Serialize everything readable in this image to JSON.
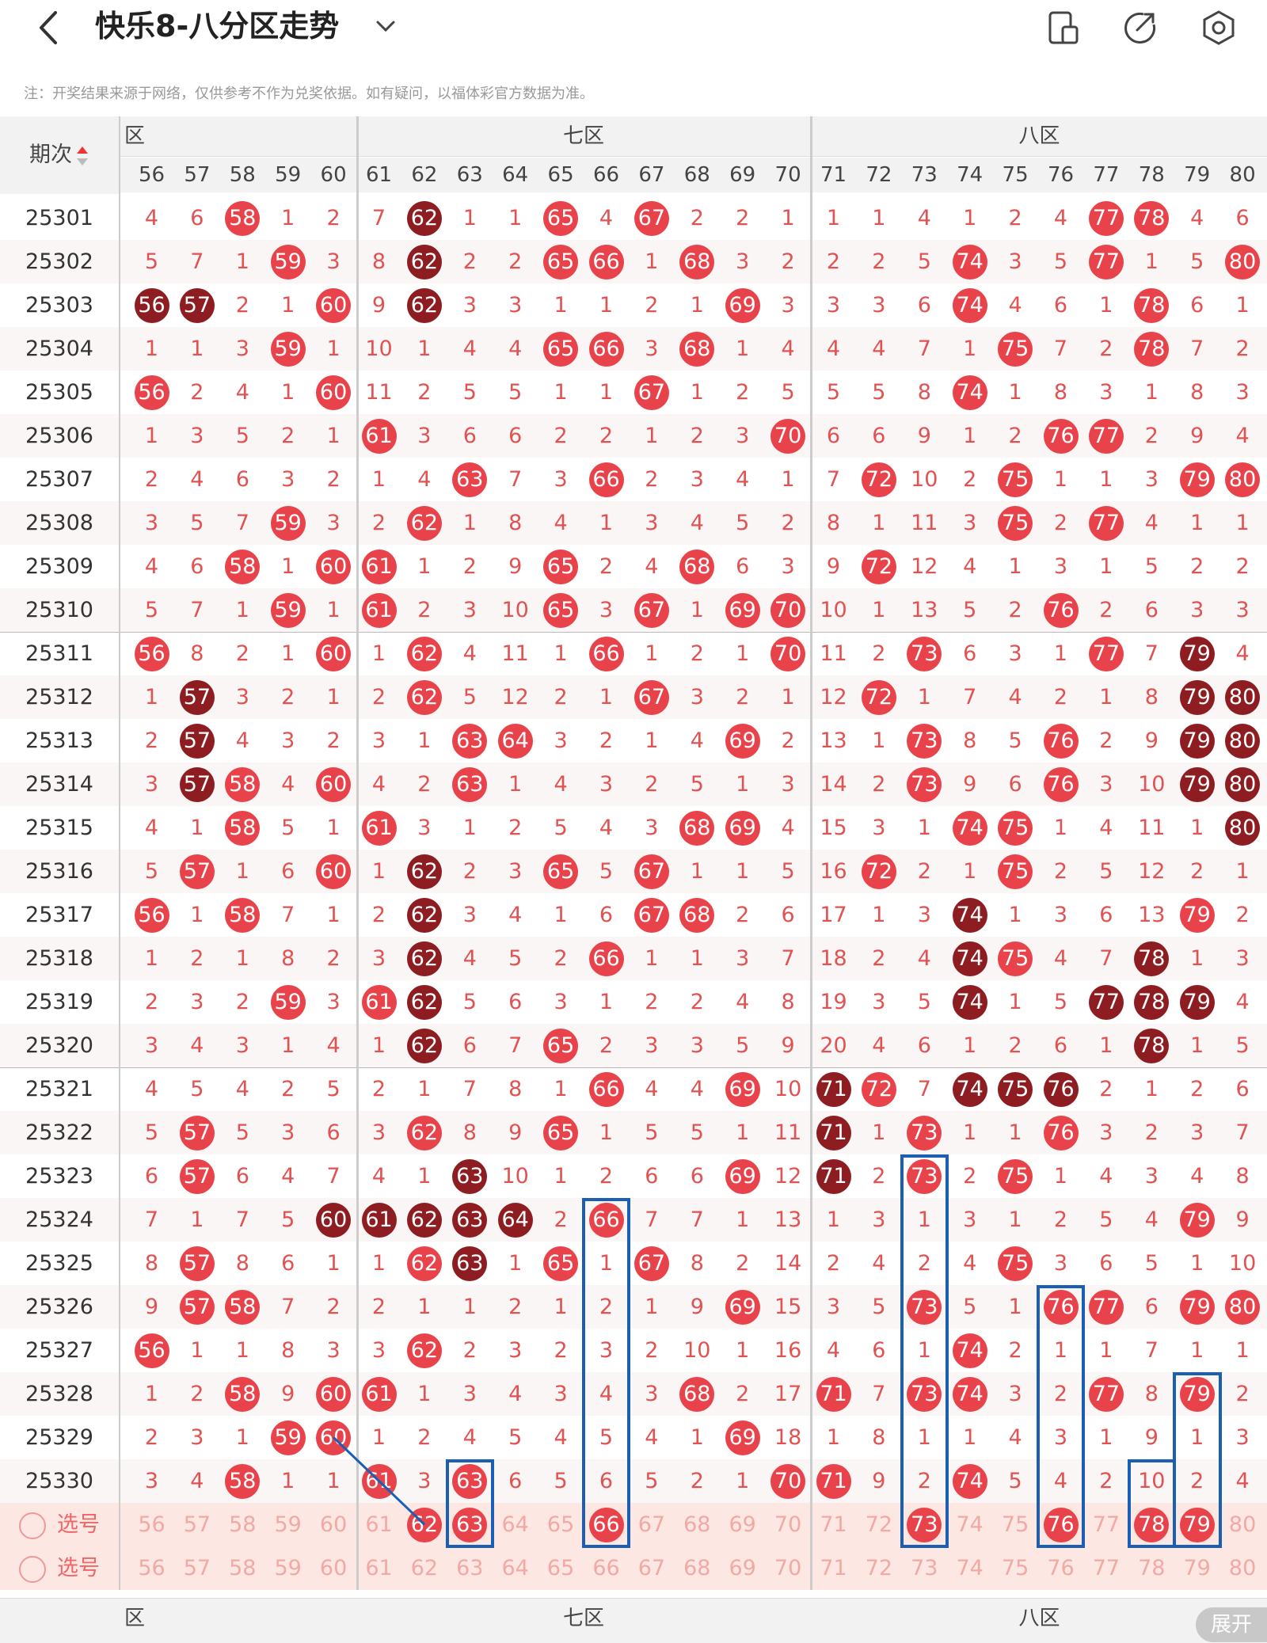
{
  "header": {
    "title": "快乐8-八分区走势",
    "back_icon": "back-arrow-icon",
    "dropdown_icon": "chevron-down-icon",
    "icons": [
      "split-screen-icon",
      "share-icon",
      "settings-icon"
    ]
  },
  "notice": "注：开奖结果来源于网络，仅供参考不作为兑奖依据。如有疑问，以福体彩官方数据为准。",
  "table": {
    "period_header": "期次",
    "zones": [
      {
        "label": "六区",
        "visible": "区"
      },
      {
        "label": "七区"
      },
      {
        "label": "八区"
      }
    ],
    "columns": [
      "56",
      "57",
      "58",
      "59",
      "60",
      "61",
      "62",
      "63",
      "64",
      "65",
      "66",
      "67",
      "68",
      "69",
      "70",
      "71",
      "72",
      "73",
      "74",
      "75",
      "76",
      "77",
      "78",
      "79",
      "80"
    ],
    "rows": [
      {
        "p": "25301",
        "v": [
          4,
          6,
          58,
          1,
          2,
          7,
          62,
          1,
          1,
          65,
          4,
          67,
          2,
          2,
          1,
          1,
          1,
          4,
          1,
          2,
          4,
          77,
          78,
          4,
          6
        ],
        "d": [
          62
        ]
      },
      {
        "p": "25302",
        "v": [
          5,
          7,
          1,
          59,
          3,
          8,
          62,
          2,
          2,
          65,
          66,
          1,
          68,
          3,
          2,
          2,
          2,
          5,
          74,
          3,
          5,
          77,
          1,
          5,
          80
        ],
        "d": [
          62
        ]
      },
      {
        "p": "25303",
        "v": [
          56,
          57,
          2,
          1,
          60,
          9,
          62,
          3,
          3,
          1,
          1,
          2,
          1,
          69,
          3,
          3,
          3,
          6,
          74,
          4,
          6,
          1,
          78,
          6,
          1
        ],
        "d": [
          56,
          57,
          62
        ]
      },
      {
        "p": "25304",
        "v": [
          1,
          1,
          3,
          59,
          1,
          10,
          1,
          4,
          4,
          65,
          66,
          3,
          68,
          1,
          4,
          4,
          4,
          7,
          1,
          75,
          7,
          2,
          78,
          7,
          2
        ],
        "d": []
      },
      {
        "p": "25305",
        "v": [
          56,
          2,
          4,
          1,
          60,
          11,
          2,
          5,
          5,
          1,
          1,
          67,
          1,
          2,
          5,
          5,
          5,
          8,
          74,
          1,
          8,
          3,
          1,
          8,
          3
        ],
        "d": []
      },
      {
        "p": "25306",
        "v": [
          1,
          3,
          5,
          2,
          1,
          61,
          3,
          6,
          6,
          2,
          2,
          1,
          2,
          3,
          70,
          6,
          6,
          9,
          1,
          2,
          76,
          77,
          2,
          9,
          4
        ],
        "d": []
      },
      {
        "p": "25307",
        "v": [
          2,
          4,
          6,
          3,
          2,
          1,
          4,
          63,
          7,
          3,
          66,
          2,
          3,
          4,
          1,
          7,
          72,
          10,
          2,
          75,
          1,
          1,
          3,
          79,
          80
        ],
        "d": []
      },
      {
        "p": "25308",
        "v": [
          3,
          5,
          7,
          59,
          3,
          2,
          62,
          1,
          8,
          4,
          1,
          3,
          4,
          5,
          2,
          8,
          1,
          11,
          3,
          75,
          2,
          77,
          4,
          1,
          1
        ],
        "d": []
      },
      {
        "p": "25309",
        "v": [
          4,
          6,
          58,
          1,
          60,
          61,
          1,
          2,
          9,
          65,
          2,
          4,
          68,
          6,
          3,
          9,
          72,
          12,
          4,
          1,
          3,
          1,
          5,
          2,
          2
        ],
        "d": []
      },
      {
        "p": "25310",
        "v": [
          5,
          7,
          1,
          59,
          1,
          61,
          2,
          3,
          10,
          65,
          3,
          67,
          1,
          69,
          70,
          10,
          1,
          13,
          5,
          2,
          76,
          2,
          6,
          3,
          3
        ],
        "d": []
      },
      {
        "p": "25311",
        "v": [
          56,
          8,
          2,
          1,
          60,
          1,
          62,
          4,
          11,
          1,
          66,
          1,
          2,
          1,
          70,
          11,
          2,
          73,
          6,
          3,
          1,
          77,
          7,
          79,
          4
        ],
        "d": [
          79
        ]
      },
      {
        "p": "25312",
        "v": [
          1,
          57,
          3,
          2,
          1,
          2,
          62,
          5,
          12,
          2,
          1,
          67,
          3,
          2,
          1,
          12,
          72,
          1,
          7,
          4,
          2,
          1,
          8,
          79,
          80
        ],
        "d": [
          57,
          79,
          80
        ]
      },
      {
        "p": "25313",
        "v": [
          2,
          57,
          4,
          3,
          2,
          3,
          1,
          63,
          64,
          3,
          2,
          1,
          4,
          69,
          2,
          13,
          1,
          73,
          8,
          5,
          76,
          2,
          9,
          79,
          80
        ],
        "d": [
          57,
          79,
          80
        ]
      },
      {
        "p": "25314",
        "v": [
          3,
          57,
          58,
          4,
          60,
          4,
          2,
          63,
          1,
          4,
          3,
          2,
          5,
          1,
          3,
          14,
          2,
          73,
          9,
          6,
          76,
          3,
          10,
          79,
          80
        ],
        "d": [
          57,
          79,
          80
        ]
      },
      {
        "p": "25315",
        "v": [
          4,
          1,
          58,
          5,
          1,
          61,
          3,
          1,
          2,
          5,
          4,
          3,
          68,
          69,
          4,
          15,
          3,
          1,
          74,
          75,
          1,
          4,
          11,
          1,
          80
        ],
        "d": [
          80
        ]
      },
      {
        "p": "25316",
        "v": [
          5,
          57,
          1,
          6,
          60,
          1,
          62,
          2,
          3,
          65,
          5,
          67,
          1,
          1,
          5,
          16,
          72,
          2,
          1,
          75,
          2,
          5,
          12,
          2,
          1
        ],
        "d": [
          62
        ]
      },
      {
        "p": "25317",
        "v": [
          56,
          1,
          58,
          7,
          1,
          2,
          62,
          3,
          4,
          1,
          6,
          67,
          68,
          2,
          6,
          17,
          1,
          3,
          74,
          1,
          3,
          6,
          13,
          79,
          2
        ],
        "d": [
          62,
          74
        ]
      },
      {
        "p": "25318",
        "v": [
          1,
          2,
          1,
          8,
          2,
          3,
          62,
          4,
          5,
          2,
          66,
          1,
          1,
          3,
          7,
          18,
          2,
          4,
          74,
          75,
          4,
          7,
          78,
          1,
          3
        ],
        "d": [
          62,
          74,
          78
        ]
      },
      {
        "p": "25319",
        "v": [
          2,
          3,
          2,
          59,
          3,
          61,
          62,
          5,
          6,
          3,
          1,
          2,
          2,
          4,
          8,
          19,
          3,
          5,
          74,
          1,
          5,
          77,
          78,
          79,
          4
        ],
        "d": [
          62,
          74,
          77,
          78,
          79
        ]
      },
      {
        "p": "25320",
        "v": [
          3,
          4,
          3,
          1,
          4,
          1,
          62,
          6,
          7,
          65,
          2,
          3,
          3,
          5,
          9,
          20,
          4,
          6,
          1,
          2,
          6,
          1,
          78,
          1,
          5
        ],
        "d": [
          62,
          78
        ]
      },
      {
        "p": "25321",
        "v": [
          4,
          5,
          4,
          2,
          5,
          2,
          1,
          7,
          8,
          1,
          66,
          4,
          4,
          69,
          10,
          71,
          72,
          7,
          74,
          75,
          76,
          2,
          1,
          2,
          6
        ],
        "d": [
          71,
          74,
          75,
          76
        ]
      },
      {
        "p": "25322",
        "v": [
          5,
          57,
          5,
          3,
          6,
          3,
          62,
          8,
          9,
          65,
          1,
          5,
          5,
          1,
          11,
          71,
          1,
          73,
          1,
          1,
          76,
          3,
          2,
          3,
          7
        ],
        "d": [
          71
        ]
      },
      {
        "p": "25323",
        "v": [
          6,
          57,
          6,
          4,
          7,
          4,
          1,
          63,
          10,
          1,
          2,
          6,
          6,
          69,
          12,
          71,
          2,
          73,
          2,
          75,
          1,
          4,
          3,
          4,
          8
        ],
        "d": [
          63,
          71
        ]
      },
      {
        "p": "25324",
        "v": [
          7,
          1,
          7,
          5,
          60,
          61,
          62,
          63,
          64,
          2,
          66,
          7,
          7,
          1,
          13,
          1,
          3,
          1,
          3,
          1,
          2,
          5,
          4,
          79,
          9
        ],
        "d": [
          60,
          61,
          62,
          63,
          64
        ]
      },
      {
        "p": "25325",
        "v": [
          8,
          57,
          8,
          6,
          1,
          1,
          62,
          63,
          1,
          65,
          1,
          67,
          8,
          2,
          14,
          2,
          4,
          2,
          4,
          75,
          3,
          6,
          5,
          1,
          10
        ],
        "d": [
          63
        ]
      },
      {
        "p": "25326",
        "v": [
          9,
          57,
          58,
          7,
          2,
          2,
          1,
          1,
          2,
          1,
          2,
          1,
          9,
          69,
          15,
          3,
          5,
          73,
          5,
          1,
          76,
          77,
          6,
          79,
          80
        ],
        "d": []
      },
      {
        "p": "25327",
        "v": [
          56,
          1,
          1,
          8,
          3,
          3,
          62,
          2,
          3,
          2,
          3,
          2,
          10,
          1,
          16,
          4,
          6,
          1,
          74,
          2,
          1,
          1,
          7,
          1,
          1
        ],
        "d": []
      },
      {
        "p": "25328",
        "v": [
          1,
          2,
          58,
          9,
          60,
          61,
          1,
          3,
          4,
          3,
          4,
          3,
          68,
          2,
          17,
          71,
          7,
          73,
          74,
          3,
          2,
          77,
          8,
          79,
          2
        ],
        "d": []
      },
      {
        "p": "25329",
        "v": [
          2,
          3,
          1,
          59,
          60,
          1,
          2,
          4,
          5,
          4,
          5,
          4,
          1,
          69,
          18,
          1,
          8,
          1,
          1,
          4,
          3,
          1,
          9,
          1,
          3
        ],
        "d": []
      },
      {
        "p": "25330",
        "v": [
          3,
          4,
          58,
          1,
          1,
          61,
          3,
          63,
          6,
          5,
          6,
          5,
          2,
          1,
          70,
          71,
          9,
          2,
          74,
          5,
          4,
          2,
          10,
          2,
          4
        ],
        "d": []
      }
    ],
    "select_rows": [
      {
        "label": "选号",
        "highlight": [
          62,
          63,
          66,
          73,
          76,
          78,
          79
        ]
      },
      {
        "label": "选号",
        "highlight": []
      }
    ],
    "expand_label": "展开"
  },
  "colors": {
    "ball_red": "#e8424a",
    "ball_dark": "#8e1d22",
    "miss_text": "#e15252",
    "box_blue": "#1a5fb4"
  }
}
